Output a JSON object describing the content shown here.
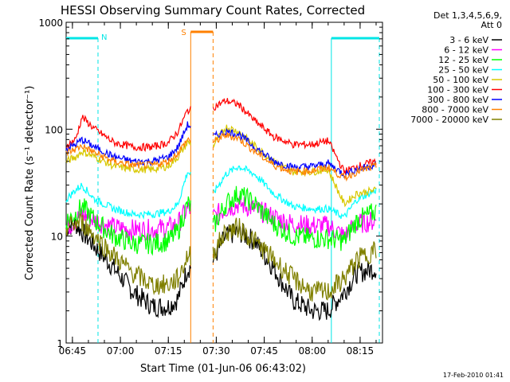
{
  "chart_data": {
    "type": "line",
    "title": "HESSI Observing Summary Count Rates, Corrected",
    "xlabel": "Start Time (01-Jun-06 06:43:02)",
    "ylabel": "Corrected Count Rate (s⁻¹ detector⁻¹)",
    "x_ticks": [
      "06:45",
      "07:00",
      "07:15",
      "07:30",
      "07:45",
      "08:00",
      "08:15"
    ],
    "y_ticks": [
      "1",
      "10",
      "100",
      "1000"
    ],
    "yscale": "log",
    "ylim": [
      1,
      1000
    ],
    "xlim": [
      "06:43:02",
      "08:22:00"
    ],
    "legend_header": [
      "Det 1,3,4,5,6,9,",
      "Att 0"
    ],
    "legend_position": "right",
    "footer_date": "17-Feb-2010 01:41",
    "flags": {
      "night_label": "N",
      "saa_label": "S",
      "night_color": "#00e6e6",
      "saa_color": "#ff8000",
      "night_intervals": [
        [
          "06:43:02",
          "06:53:00"
        ],
        [
          "08:06:00",
          "08:21:00"
        ]
      ],
      "saa_interval": [
        "07:22:00",
        "07:29:00"
      ]
    },
    "data_gap": [
      "07:22:00",
      "07:29:00"
    ],
    "x": [
      "06:43",
      "06:46",
      "06:48",
      "06:52",
      "06:58",
      "07:04",
      "07:10",
      "07:15",
      "07:18",
      "07:21",
      "07:29",
      "07:33",
      "07:37",
      "07:42",
      "07:48",
      "07:54",
      "08:00",
      "08:05",
      "08:10",
      "08:14",
      "08:20"
    ],
    "series": [
      {
        "name": "3 - 6 keV",
        "color": "#000000",
        "values": [
          12.0,
          13.0,
          11.0,
          8.0,
          5.0,
          3.0,
          2.2,
          2.2,
          2.6,
          5.0,
          6.0,
          10.0,
          11.0,
          9.0,
          5.0,
          2.5,
          2.0,
          2.0,
          3.0,
          4.5,
          5.0
        ]
      },
      {
        "name": "6 - 12 keV",
        "color": "#ff00ff",
        "values": [
          12.0,
          14.0,
          16.0,
          14.0,
          12.0,
          11.5,
          11.5,
          12.0,
          13.0,
          18.0,
          15.0,
          18.0,
          20.0,
          18.0,
          15.0,
          13.0,
          12.5,
          12.5,
          10.0,
          13.0,
          14.0
        ]
      },
      {
        "name": "12 - 25 keV",
        "color": "#00ff00",
        "values": [
          14.0,
          16.0,
          19.0,
          14.0,
          10.0,
          8.5,
          8.5,
          9.0,
          11.0,
          20.0,
          12.0,
          20.0,
          25.0,
          20.0,
          13.0,
          10.0,
          9.5,
          9.5,
          9.0,
          14.0,
          17.0
        ]
      },
      {
        "name": "25 - 50 keV",
        "color": "#00ffff",
        "values": [
          22.0,
          27.0,
          30.0,
          22.0,
          18.0,
          16.0,
          16.0,
          17.0,
          20.0,
          40.0,
          25.0,
          38.0,
          45.0,
          38.0,
          25.0,
          19.0,
          18.0,
          18.0,
          15.0,
          22.0,
          27.0
        ]
      },
      {
        "name": "50 - 100 keV",
        "color": "#d8c800",
        "values": [
          50.0,
          55.0,
          62.0,
          55.0,
          45.0,
          42.0,
          42.0,
          45.0,
          55.0,
          75.0,
          70.0,
          105.0,
          95.0,
          70.0,
          50.0,
          40.0,
          40.0,
          42.0,
          20.0,
          25.0,
          27.0
        ]
      },
      {
        "name": "100 - 300 keV",
        "color": "#ff0000",
        "values": [
          70.0,
          80.0,
          130.0,
          100.0,
          75.0,
          68.0,
          68.0,
          75.0,
          95.0,
          150.0,
          160.0,
          185.0,
          170.0,
          120.0,
          85.0,
          72.0,
          72.0,
          78.0,
          40.0,
          45.0,
          50.0
        ]
      },
      {
        "name": "300 - 800 keV",
        "color": "#0000ff",
        "values": [
          65.0,
          72.0,
          80.0,
          68.0,
          55.0,
          50.0,
          50.0,
          55.0,
          68.0,
          110.0,
          85.0,
          95.0,
          90.0,
          68.0,
          50.0,
          44.0,
          45.0,
          48.0,
          38.0,
          42.0,
          47.0
        ]
      },
      {
        "name": "800 - 7000 keV",
        "color": "#ff8000",
        "values": [
          60.0,
          65.0,
          70.0,
          60.0,
          50.0,
          46.0,
          46.0,
          50.0,
          60.0,
          80.0,
          75.0,
          88.0,
          82.0,
          62.0,
          46.0,
          40.0,
          41.0,
          44.0,
          35.0,
          40.0,
          45.0
        ]
      },
      {
        "name": "7000 - 20000 keV",
        "color": "#808000",
        "values": [
          12.0,
          13.0,
          13.5,
          10.0,
          6.5,
          4.5,
          3.5,
          3.5,
          4.0,
          6.5,
          7.0,
          11.0,
          12.0,
          9.0,
          6.0,
          4.0,
          3.0,
          3.0,
          4.0,
          6.0,
          7.5
        ]
      }
    ]
  }
}
